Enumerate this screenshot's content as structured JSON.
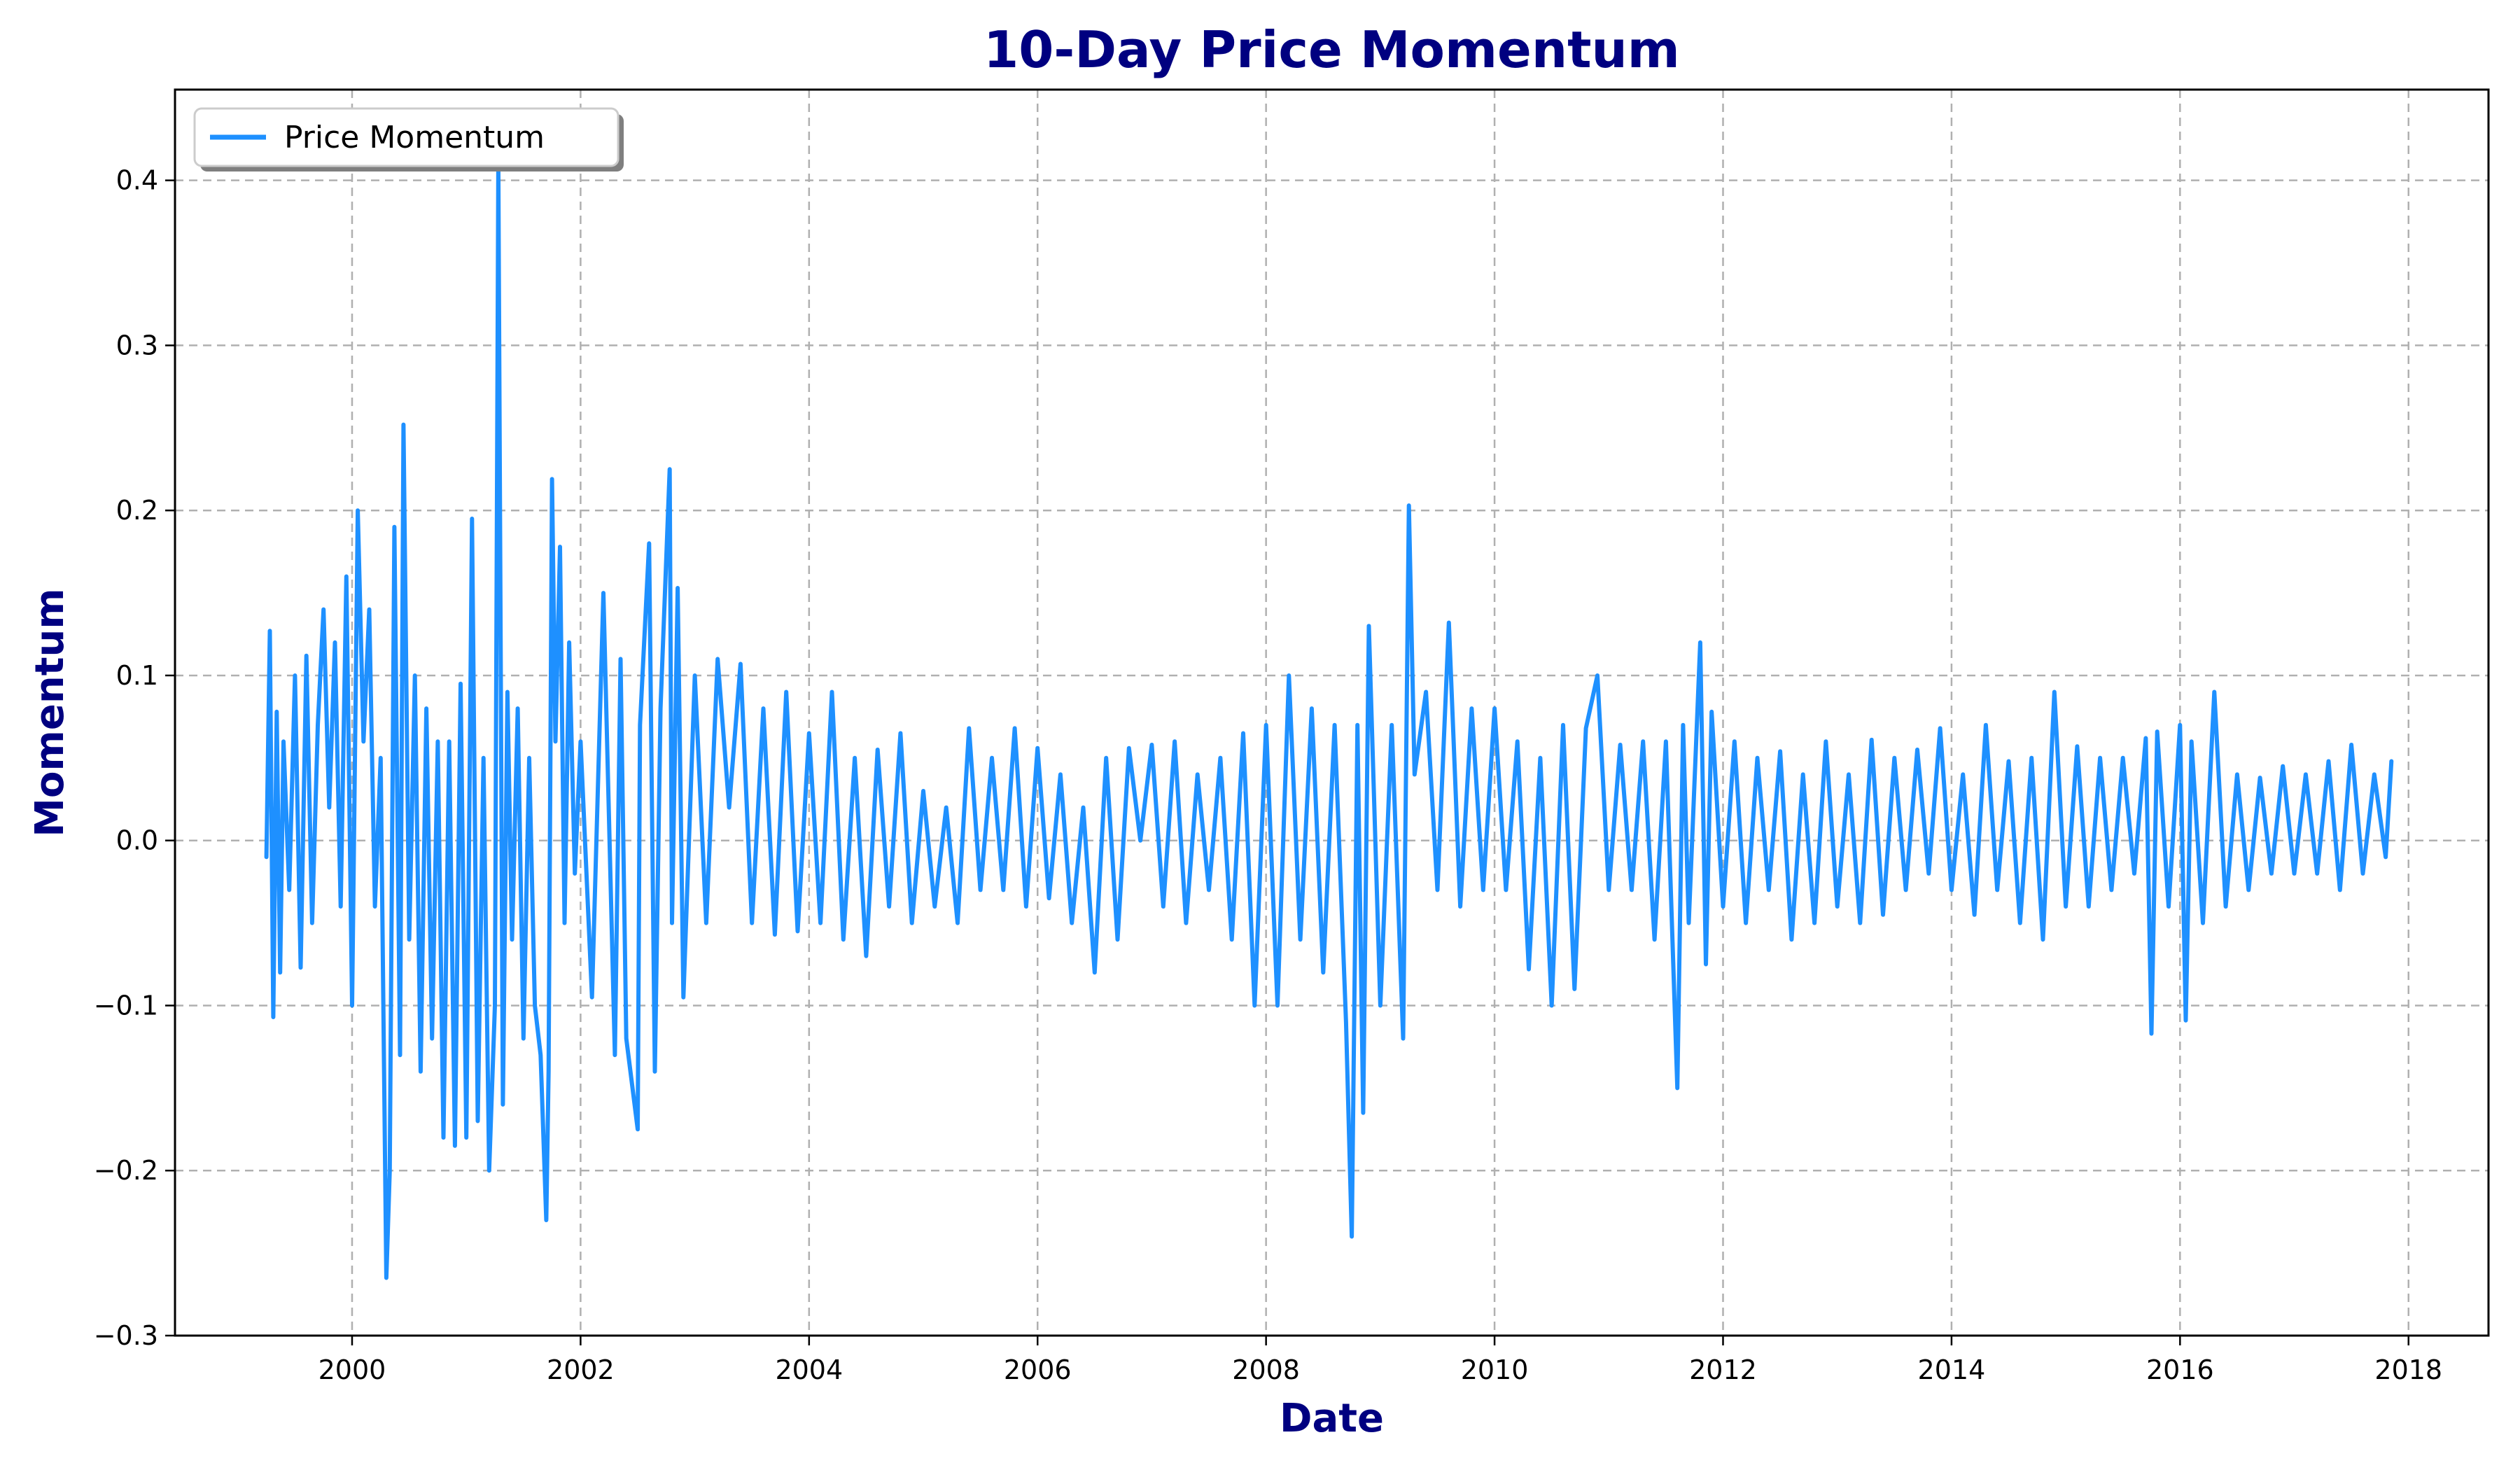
{
  "chart_data": {
    "type": "line",
    "title": "10-Day Price Momentum",
    "xlabel": "Date",
    "ylabel": "Momentum",
    "xlim": [
      1998.45,
      2018.7
    ],
    "ylim": [
      -0.3,
      0.455
    ],
    "x_ticks": [
      2000,
      2002,
      2004,
      2006,
      2008,
      2010,
      2012,
      2014,
      2016,
      2018
    ],
    "x_tick_labels": [
      "2000",
      "2002",
      "2004",
      "2006",
      "2008",
      "2010",
      "2012",
      "2014",
      "2016",
      "2018"
    ],
    "y_ticks": [
      -0.3,
      -0.2,
      -0.1,
      0.0,
      0.1,
      0.2,
      0.3,
      0.4
    ],
    "y_tick_labels": [
      "−0.3",
      "−0.2",
      "−0.1",
      "0.0",
      "0.1",
      "0.2",
      "0.3",
      "0.4"
    ],
    "grid": true,
    "legend": {
      "placement": "upper-left",
      "entries": [
        "Price Momentum"
      ]
    },
    "colors": {
      "line": "#1e90ff",
      "title": "#000080",
      "axis_label": "#000080"
    },
    "series": [
      {
        "name": "Price Momentum",
        "x": [
          1999.25,
          1999.28,
          1999.31,
          1999.34,
          1999.37,
          1999.4,
          1999.45,
          1999.5,
          1999.55,
          1999.6,
          1999.65,
          1999.7,
          1999.75,
          1999.8,
          1999.85,
          1999.9,
          1999.95,
          2000.0,
          2000.05,
          2000.1,
          2000.15,
          2000.2,
          2000.25,
          2000.3,
          2000.33,
          2000.37,
          2000.42,
          2000.45,
          2000.5,
          2000.55,
          2000.6,
          2000.65,
          2000.7,
          2000.75,
          2000.8,
          2000.85,
          2000.9,
          2000.95,
          2001.0,
          2001.05,
          2001.1,
          2001.15,
          2001.2,
          2001.25,
          2001.28,
          2001.32,
          2001.36,
          2001.4,
          2001.45,
          2001.5,
          2001.55,
          2001.6,
          2001.65,
          2001.7,
          2001.72,
          2001.75,
          2001.78,
          2001.82,
          2001.86,
          2001.9,
          2001.95,
          2002.0,
          2002.1,
          2002.2,
          2002.3,
          2002.35,
          2002.4,
          2002.5,
          2002.52,
          2002.6,
          2002.65,
          2002.7,
          2002.78,
          2002.8,
          2002.85,
          2002.9,
          2003.0,
          2003.1,
          2003.2,
          2003.3,
          2003.4,
          2003.5,
          2003.6,
          2003.7,
          2003.8,
          2003.9,
          2004.0,
          2004.1,
          2004.2,
          2004.3,
          2004.4,
          2004.5,
          2004.6,
          2004.7,
          2004.8,
          2004.9,
          2005.0,
          2005.1,
          2005.2,
          2005.3,
          2005.4,
          2005.5,
          2005.6,
          2005.7,
          2005.8,
          2005.9,
          2006.0,
          2006.1,
          2006.2,
          2006.3,
          2006.4,
          2006.5,
          2006.6,
          2006.7,
          2006.8,
          2006.9,
          2007.0,
          2007.1,
          2007.2,
          2007.3,
          2007.4,
          2007.5,
          2007.6,
          2007.7,
          2007.8,
          2007.9,
          2008.0,
          2008.1,
          2008.2,
          2008.3,
          2008.4,
          2008.5,
          2008.6,
          2008.7,
          2008.75,
          2008.8,
          2008.85,
          2008.9,
          2009.0,
          2009.1,
          2009.2,
          2009.25,
          2009.3,
          2009.4,
          2009.5,
          2009.6,
          2009.7,
          2009.8,
          2009.9,
          2010.0,
          2010.1,
          2010.2,
          2010.3,
          2010.4,
          2010.5,
          2010.6,
          2010.7,
          2010.8,
          2010.9,
          2011.0,
          2011.1,
          2011.2,
          2011.3,
          2011.4,
          2011.5,
          2011.6,
          2011.65,
          2011.7,
          2011.8,
          2011.85,
          2011.9,
          2012.0,
          2012.1,
          2012.2,
          2012.3,
          2012.4,
          2012.5,
          2012.6,
          2012.7,
          2012.8,
          2012.9,
          2013.0,
          2013.1,
          2013.2,
          2013.3,
          2013.4,
          2013.5,
          2013.6,
          2013.7,
          2013.8,
          2013.9,
          2014.0,
          2014.1,
          2014.2,
          2014.3,
          2014.4,
          2014.5,
          2014.6,
          2014.7,
          2014.8,
          2014.9,
          2015.0,
          2015.1,
          2015.2,
          2015.3,
          2015.4,
          2015.5,
          2015.6,
          2015.7,
          2015.75,
          2015.8,
          2015.9,
          2016.0,
          2016.05,
          2016.1,
          2016.2,
          2016.3,
          2016.4,
          2016.5,
          2016.6,
          2016.7,
          2016.8,
          2016.9,
          2017.0,
          2017.1,
          2017.2,
          2017.3,
          2017.4,
          2017.5,
          2017.6,
          2017.7,
          2017.8,
          2017.85
        ],
        "values": [
          -0.01,
          0.127,
          -0.107,
          0.078,
          -0.08,
          0.06,
          -0.03,
          0.1,
          -0.077,
          0.112,
          -0.05,
          0.07,
          0.14,
          0.02,
          0.12,
          -0.04,
          0.16,
          -0.1,
          0.2,
          0.06,
          0.14,
          -0.04,
          0.05,
          -0.265,
          -0.2,
          0.19,
          -0.13,
          0.252,
          -0.06,
          0.1,
          -0.14,
          0.08,
          -0.12,
          0.06,
          -0.18,
          0.06,
          -0.185,
          0.095,
          -0.18,
          0.195,
          -0.17,
          0.05,
          -0.2,
          -0.1,
          0.41,
          -0.16,
          0.09,
          -0.06,
          0.08,
          -0.12,
          0.05,
          -0.1,
          -0.13,
          -0.23,
          -0.14,
          0.219,
          0.06,
          0.178,
          -0.05,
          0.12,
          -0.02,
          0.06,
          -0.095,
          0.15,
          -0.13,
          0.11,
          -0.12,
          -0.175,
          0.07,
          0.18,
          -0.14,
          0.08,
          0.225,
          -0.05,
          0.153,
          -0.095,
          0.1,
          -0.05,
          0.11,
          0.02,
          0.107,
          -0.05,
          0.08,
          -0.057,
          0.09,
          -0.055,
          0.065,
          -0.05,
          0.09,
          -0.06,
          0.05,
          -0.07,
          0.055,
          -0.04,
          0.065,
          -0.05,
          0.03,
          -0.04,
          0.02,
          -0.05,
          0.068,
          -0.03,
          0.05,
          -0.03,
          0.068,
          -0.04,
          0.056,
          -0.035,
          0.04,
          -0.05,
          0.02,
          -0.08,
          0.05,
          -0.06,
          0.056,
          0.0,
          0.058,
          -0.04,
          0.06,
          -0.05,
          0.04,
          -0.03,
          0.05,
          -0.06,
          0.065,
          -0.1,
          0.07,
          -0.1,
          0.1,
          -0.06,
          0.08,
          -0.08,
          0.07,
          -0.11,
          -0.24,
          0.07,
          -0.165,
          0.13,
          -0.1,
          0.07,
          -0.12,
          0.203,
          0.04,
          0.09,
          -0.03,
          0.132,
          -0.04,
          0.08,
          -0.03,
          0.08,
          -0.03,
          0.06,
          -0.078,
          0.05,
          -0.1,
          0.07,
          -0.09,
          0.068,
          0.1,
          -0.03,
          0.058,
          -0.03,
          0.06,
          -0.06,
          0.06,
          -0.15,
          0.07,
          -0.05,
          0.12,
          -0.075,
          0.078,
          -0.04,
          0.06,
          -0.05,
          0.05,
          -0.03,
          0.054,
          -0.06,
          0.04,
          -0.05,
          0.06,
          -0.04,
          0.04,
          -0.05,
          0.061,
          -0.045,
          0.05,
          -0.03,
          0.055,
          -0.02,
          0.068,
          -0.03,
          0.04,
          -0.045,
          0.07,
          -0.03,
          0.048,
          -0.05,
          0.05,
          -0.06,
          0.09,
          -0.04,
          0.057,
          -0.04,
          0.05,
          -0.03,
          0.05,
          -0.02,
          0.062,
          -0.117,
          0.066,
          -0.04,
          0.07,
          -0.109,
          0.06,
          -0.05,
          0.09,
          -0.04,
          0.04,
          -0.03,
          0.038,
          -0.02,
          0.045,
          -0.02,
          0.04,
          -0.02,
          0.048,
          -0.03,
          0.058,
          -0.02,
          0.04,
          -0.01,
          0.048
        ]
      }
    ]
  }
}
